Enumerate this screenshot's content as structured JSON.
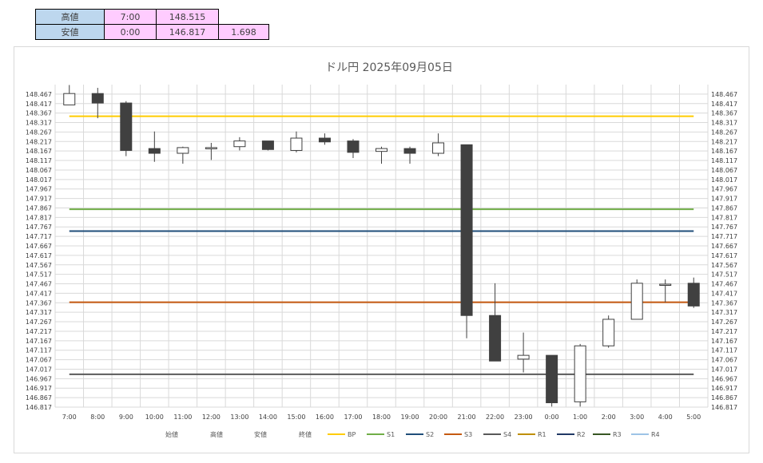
{
  "summary": {
    "high": {
      "label": "高値",
      "time": "7:00",
      "price": "148.515"
    },
    "low": {
      "label": "安値",
      "time": "0:00",
      "price": "146.817",
      "range": "1.698"
    }
  },
  "chart_data": {
    "type": "candlestick",
    "title": "ドル円  2025年09月05日",
    "x": [
      "7:00",
      "8:00",
      "9:00",
      "10:00",
      "11:00",
      "12:00",
      "13:00",
      "14:00",
      "15:00",
      "16:00",
      "17:00",
      "18:00",
      "19:00",
      "20:00",
      "21:00",
      "22:00",
      "23:00",
      "0:00",
      "1:00",
      "2:00",
      "3:00",
      "4:00",
      "5:00"
    ],
    "ylim": [
      146.817,
      148.517
    ],
    "ytick_labels": [
      "146.817",
      "146.867",
      "146.917",
      "146.967",
      "147.017",
      "147.067",
      "147.117",
      "147.167",
      "147.217",
      "147.267",
      "147.317",
      "147.367",
      "147.417",
      "147.467",
      "147.517",
      "147.567",
      "147.617",
      "147.667",
      "147.717",
      "147.767",
      "147.817",
      "147.867",
      "147.917",
      "147.967",
      "148.017",
      "148.067",
      "148.117",
      "148.167",
      "148.217",
      "148.267",
      "148.317",
      "148.367",
      "148.417",
      "148.467"
    ],
    "candles": [
      {
        "open": 148.41,
        "high": 148.515,
        "low": 148.41,
        "close": 148.47
      },
      {
        "open": 148.47,
        "high": 148.5,
        "low": 148.34,
        "close": 148.42
      },
      {
        "open": 148.42,
        "high": 148.43,
        "low": 148.14,
        "close": 148.17
      },
      {
        "open": 148.18,
        "high": 148.27,
        "low": 148.11,
        "close": 148.155
      },
      {
        "open": 148.155,
        "high": 148.19,
        "low": 148.1,
        "close": 148.185
      },
      {
        "open": 148.18,
        "high": 148.21,
        "low": 148.12,
        "close": 148.185
      },
      {
        "open": 148.19,
        "high": 148.24,
        "low": 148.17,
        "close": 148.22
      },
      {
        "open": 148.22,
        "high": 148.22,
        "low": 148.17,
        "close": 148.175
      },
      {
        "open": 148.17,
        "high": 148.27,
        "low": 148.16,
        "close": 148.235
      },
      {
        "open": 148.235,
        "high": 148.26,
        "low": 148.2,
        "close": 148.215
      },
      {
        "open": 148.22,
        "high": 148.23,
        "low": 148.13,
        "close": 148.16
      },
      {
        "open": 148.165,
        "high": 148.19,
        "low": 148.1,
        "close": 148.18
      },
      {
        "open": 148.18,
        "high": 148.19,
        "low": 148.1,
        "close": 148.155
      },
      {
        "open": 148.155,
        "high": 148.26,
        "low": 148.14,
        "close": 148.21
      },
      {
        "open": 148.2,
        "high": 148.2,
        "low": 147.18,
        "close": 147.3
      },
      {
        "open": 147.3,
        "high": 147.47,
        "low": 147.06,
        "close": 147.06
      },
      {
        "open": 147.07,
        "high": 147.21,
        "low": 147.0,
        "close": 147.09
      },
      {
        "open": 147.09,
        "high": 147.09,
        "low": 146.82,
        "close": 146.84
      },
      {
        "open": 146.845,
        "high": 147.15,
        "low": 146.82,
        "close": 147.14
      },
      {
        "open": 147.14,
        "high": 147.3,
        "low": 147.13,
        "close": 147.28
      },
      {
        "open": 147.28,
        "high": 147.49,
        "low": 147.28,
        "close": 147.47
      },
      {
        "open": 147.465,
        "high": 147.49,
        "low": 147.37,
        "close": 147.465
      },
      {
        "open": 147.47,
        "high": 147.5,
        "low": 147.34,
        "close": 147.35
      }
    ],
    "levels": [
      {
        "name": "BP",
        "value": 148.35,
        "color": "#ffcc00"
      },
      {
        "name": "S1",
        "value": 147.86,
        "color": "#70ad47"
      },
      {
        "name": "S2",
        "value": 147.745,
        "color": "#1f4e79"
      },
      {
        "name": "S3",
        "value": 147.37,
        "color": "#c55a11"
      },
      {
        "name": "S4",
        "value": 146.99,
        "color": "#595959"
      }
    ],
    "legend": [
      {
        "name": "始値",
        "color": ""
      },
      {
        "name": "高値",
        "color": ""
      },
      {
        "name": "安値",
        "color": ""
      },
      {
        "name": "終値",
        "color": ""
      },
      {
        "name": "BP",
        "color": "#ffcc00"
      },
      {
        "name": "S1",
        "color": "#70ad47"
      },
      {
        "name": "S2",
        "color": "#1f4e79"
      },
      {
        "name": "S3",
        "color": "#c55a11"
      },
      {
        "name": "S4",
        "color": "#595959"
      },
      {
        "name": "R1",
        "color": "#bf8f00"
      },
      {
        "name": "R2",
        "color": "#203864"
      },
      {
        "name": "R3",
        "color": "#375623"
      },
      {
        "name": "R4",
        "color": "#9dc3e6"
      }
    ],
    "grid": true,
    "up_color": "#ffffff",
    "down_color": "#404040"
  }
}
